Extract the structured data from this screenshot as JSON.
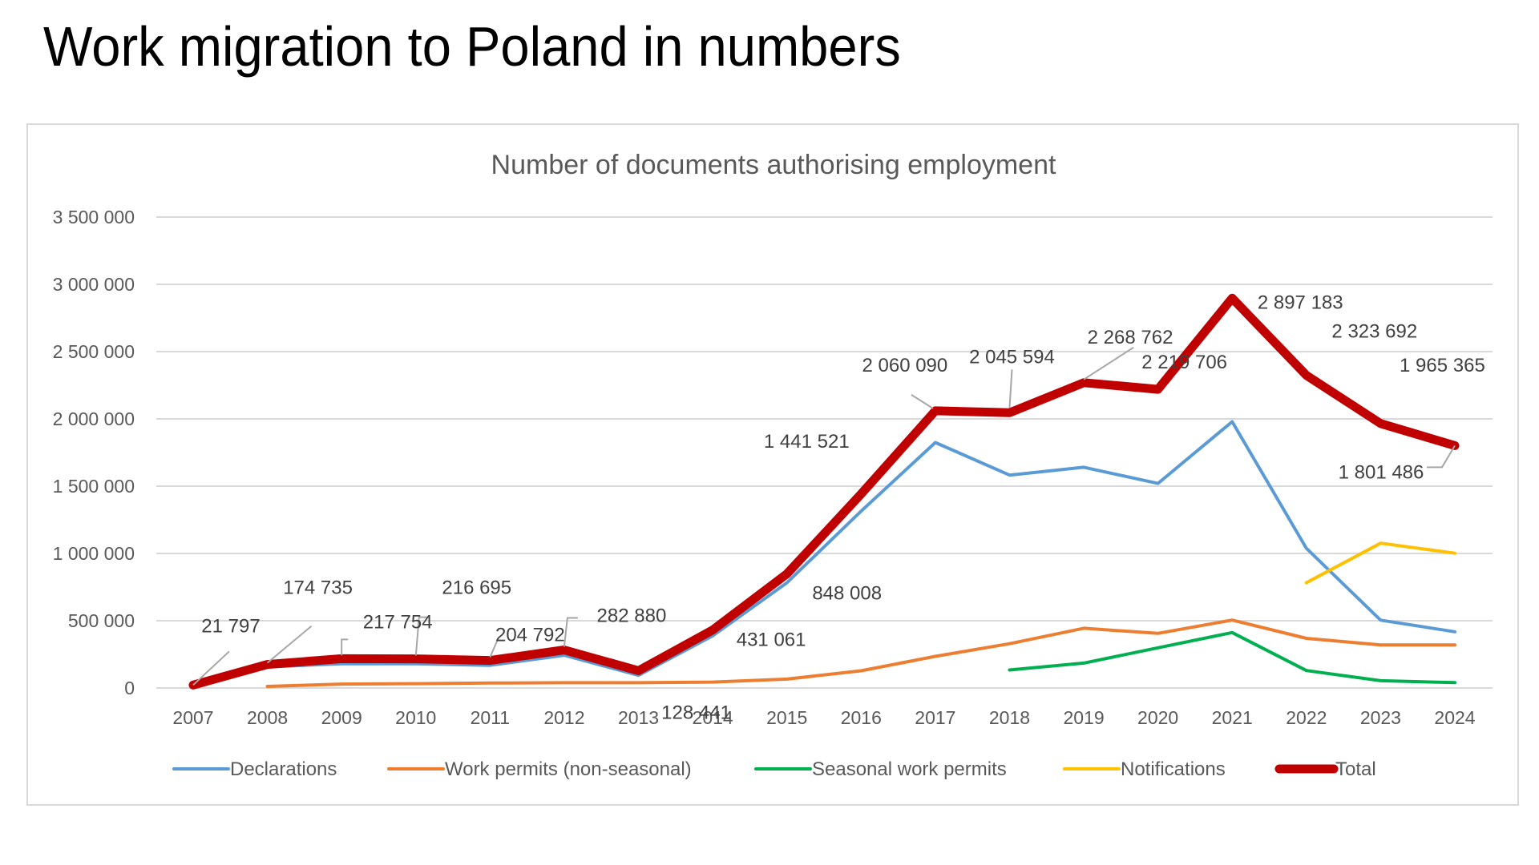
{
  "page": {
    "title": "Work migration to Poland in numbers"
  },
  "chart_data": {
    "type": "line",
    "title": "Number of documents authorising employment",
    "xlabel": "",
    "ylabel": "",
    "ylim": [
      0,
      3500000
    ],
    "yticks": [
      0,
      500000,
      1000000,
      1500000,
      2000000,
      2500000,
      3000000,
      3500000
    ],
    "ytick_labels": [
      "0",
      "500 000",
      "1 000 000",
      "1 500 000",
      "2 000 000",
      "2 500 000",
      "3 000 000",
      "3 500 000"
    ],
    "grid": true,
    "legend_position": "bottom",
    "categories": [
      "2007",
      "2008",
      "2009",
      "2010",
      "2011",
      "2012",
      "2013",
      "2014",
      "2015",
      "2016",
      "2017",
      "2018",
      "2019",
      "2020",
      "2021",
      "2022",
      "2023",
      "2024"
    ],
    "series": [
      {
        "name": "Declarations",
        "color": "#5b9bd5",
        "values": [
          21797,
          156713,
          180073,
          180133,
          168490,
          243736,
          94154,
          387398,
          782222,
          1314127,
          1824464,
          1582225,
          1640354,
          1520251,
          1979048,
          1038000,
          504000,
          418000
        ]
      },
      {
        "name": "Work permits (non-seasonal)",
        "color": "#ed7d31",
        "values": [
          null,
          12000,
          29000,
          32000,
          37000,
          39000,
          39000,
          44000,
          66000,
          128000,
          235000,
          329000,
          444000,
          406000,
          505000,
          369000,
          320000,
          320000
        ]
      },
      {
        "name": "Seasonal work permits",
        "color": "#00b050",
        "values": [
          null,
          null,
          null,
          null,
          null,
          null,
          null,
          null,
          null,
          null,
          null,
          134000,
          185000,
          299000,
          412000,
          130000,
          54000,
          40000
        ]
      },
      {
        "name": "Notifications",
        "color": "#ffc000",
        "values": [
          null,
          null,
          null,
          null,
          null,
          null,
          null,
          null,
          null,
          null,
          null,
          null,
          null,
          null,
          null,
          783000,
          1076000,
          1002000
        ]
      },
      {
        "name": "Total",
        "color": "#c00000",
        "values": [
          21797,
          174735,
          217754,
          216695,
          204792,
          282880,
          128441,
          431061,
          848008,
          1441521,
          2060090,
          2045594,
          2268762,
          2219706,
          2897183,
          2323692,
          1965365,
          1801486
        ]
      }
    ],
    "data_labels": [
      {
        "category": "2007",
        "text": "21 797"
      },
      {
        "category": "2008",
        "text": "174 735"
      },
      {
        "category": "2009",
        "text": "217 754"
      },
      {
        "category": "2010",
        "text": "216 695"
      },
      {
        "category": "2011",
        "text": "204 792"
      },
      {
        "category": "2012",
        "text": "282 880"
      },
      {
        "category": "2013",
        "text": "128 441"
      },
      {
        "category": "2014",
        "text": "431 061"
      },
      {
        "category": "2015",
        "text": "848 008"
      },
      {
        "category": "2016",
        "text": "1 441 521"
      },
      {
        "category": "2017",
        "text": "2 060 090"
      },
      {
        "category": "2018",
        "text": "2 045 594"
      },
      {
        "category": "2019",
        "text": "2 268 762"
      },
      {
        "category": "2020",
        "text": "2 219 706"
      },
      {
        "category": "2021",
        "text": "2 897 183"
      },
      {
        "category": "2022",
        "text": "2 323 692"
      },
      {
        "category": "2023",
        "text": "1 965 365"
      },
      {
        "category": "2024",
        "text": "1 801 486"
      }
    ]
  }
}
